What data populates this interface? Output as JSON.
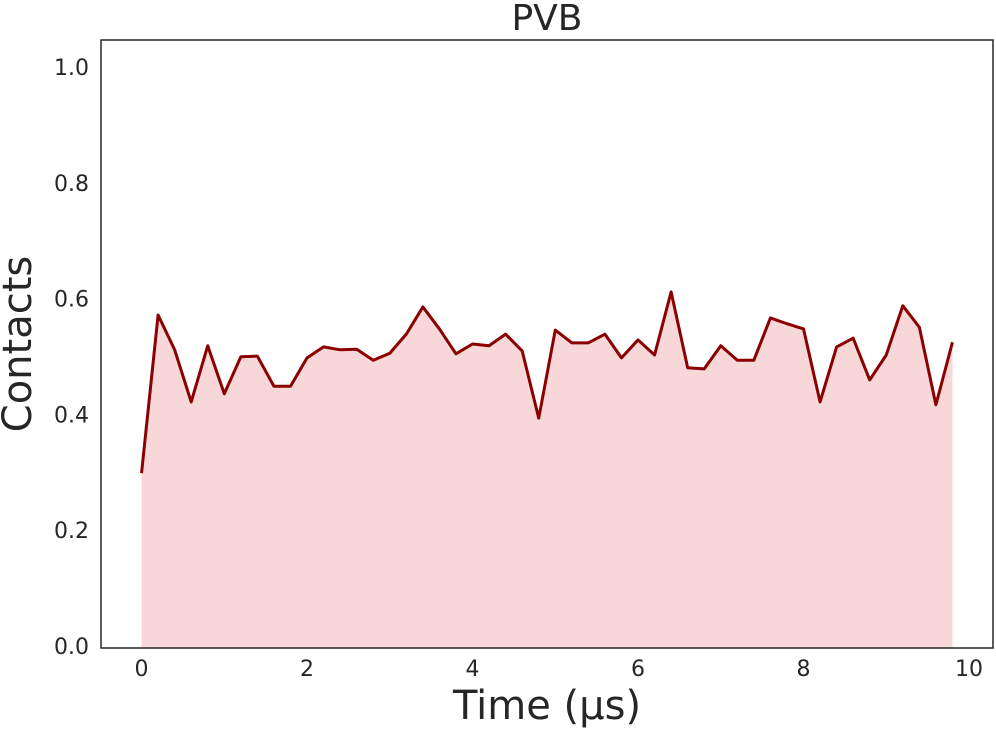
{
  "chart_data": {
    "type": "area",
    "title": "PVB",
    "x_label": "Time (µs)",
    "y_label": "Contacts",
    "x": [
      0,
      0.2,
      0.4,
      0.6,
      0.8,
      1.0,
      1.2,
      1.4,
      1.6,
      1.8,
      2.0,
      2.2,
      2.4,
      2.6,
      2.8,
      3.0,
      3.2,
      3.4,
      3.6,
      3.8,
      4.0,
      4.2,
      4.4,
      4.6,
      4.8,
      5.0,
      5.2,
      5.4,
      5.6,
      5.8,
      6.0,
      6.2,
      6.4,
      6.6,
      6.8,
      7.0,
      7.2,
      7.4,
      7.6,
      7.8,
      8.0,
      8.2,
      8.4,
      8.6,
      8.8,
      9.0,
      9.2,
      9.4,
      9.6,
      9.8
    ],
    "series": [
      {
        "name": "Contacts",
        "color": "#8b0000",
        "fill_color": "#f8d7d8",
        "values": [
          0.302,
          0.575,
          0.515,
          0.425,
          0.522,
          0.439,
          0.503,
          0.504,
          0.452,
          0.452,
          0.501,
          0.52,
          0.515,
          0.516,
          0.497,
          0.509,
          0.542,
          0.589,
          0.551,
          0.508,
          0.525,
          0.522,
          0.542,
          0.513,
          0.397,
          0.549,
          0.527,
          0.527,
          0.542,
          0.501,
          0.532,
          0.506,
          0.615,
          0.484,
          0.482,
          0.522,
          0.497,
          0.497,
          0.57,
          0.56,
          0.551,
          0.425,
          0.52,
          0.535,
          0.463,
          0.506,
          0.591,
          0.554,
          0.42,
          0.528
        ]
      }
    ],
    "xlim": [
      -0.49,
      10.29
    ],
    "ylim": [
      0,
      1.05
    ],
    "xticks": [
      0,
      2,
      4,
      6,
      8,
      10
    ],
    "yticks": [
      {
        "value": 0,
        "label": "0.0"
      },
      0.2,
      0.4,
      0.6,
      0.8,
      {
        "value": 1,
        "label": "1.0"
      }
    ],
    "grid": false
  }
}
